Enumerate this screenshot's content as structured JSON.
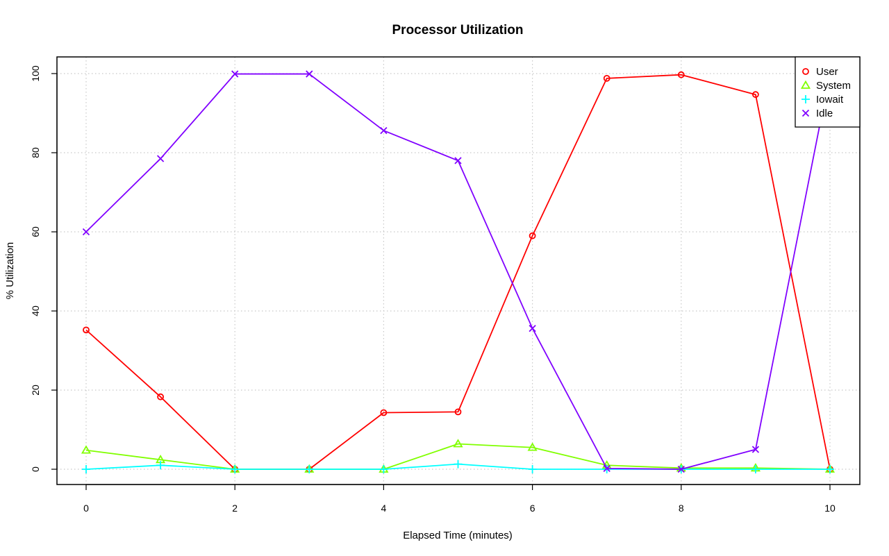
{
  "chart_data": {
    "type": "line",
    "title": "Processor Utilization",
    "xlabel": "Elapsed Time (minutes)",
    "ylabel": "% Utilization",
    "x": [
      0,
      1,
      2,
      3,
      4,
      5,
      6,
      7,
      8,
      9,
      10
    ],
    "xlim": [
      0,
      10
    ],
    "ylim": [
      0,
      100
    ],
    "x_ticks": [
      0,
      2,
      4,
      6,
      8,
      10
    ],
    "y_ticks": [
      0,
      20,
      40,
      60,
      80,
      100
    ],
    "grid": true,
    "legend_position": "top-right",
    "series": [
      {
        "name": "User",
        "marker": "circle",
        "color": "#ff0000",
        "values": [
          35.2,
          18.3,
          0.0,
          0.0,
          14.3,
          14.5,
          59.0,
          98.8,
          99.7,
          94.7,
          0.0
        ]
      },
      {
        "name": "System",
        "marker": "triangle",
        "color": "#80ff00",
        "values": [
          4.8,
          2.4,
          0.0,
          0.0,
          0.0,
          6.4,
          5.5,
          1.0,
          0.3,
          0.3,
          0.0
        ]
      },
      {
        "name": "Iowait",
        "marker": "plus",
        "color": "#00ffff",
        "values": [
          0.0,
          1.0,
          0.0,
          0.0,
          0.0,
          1.3,
          0.0,
          0.0,
          0.0,
          0.0,
          0.0
        ]
      },
      {
        "name": "Idle",
        "marker": "cross",
        "color": "#8000ff",
        "values": [
          60.0,
          78.5,
          99.9,
          99.9,
          85.6,
          78.0,
          35.6,
          0.2,
          0.0,
          5.0,
          100.0
        ]
      }
    ]
  }
}
